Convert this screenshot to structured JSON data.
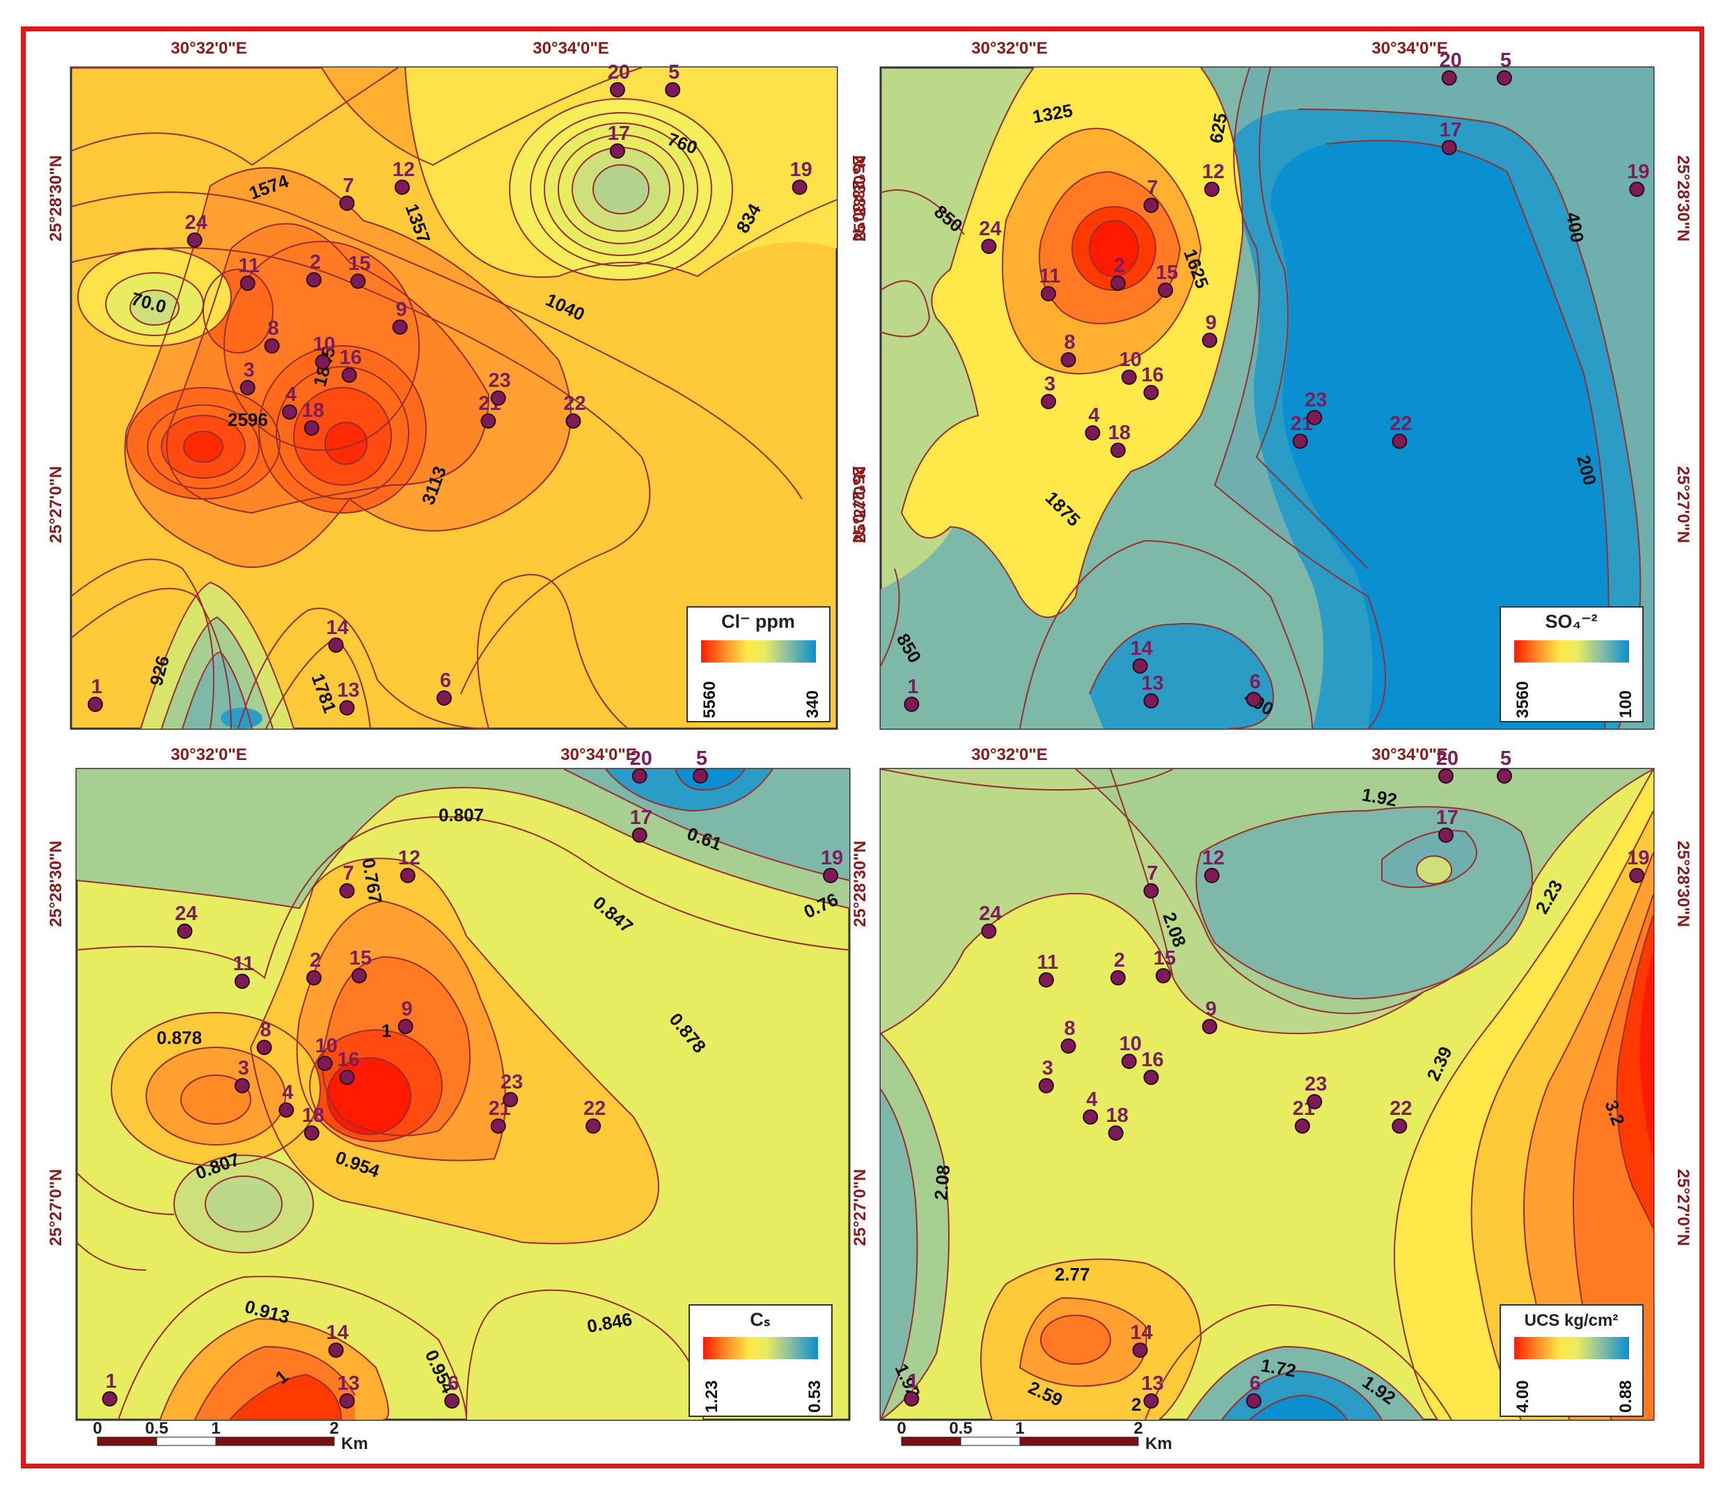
{
  "colors": {
    "frame": "#e01818",
    "contour_line": "#9a2e2e",
    "well_marker": "#7d1b55",
    "well_label": "#7a1f5c",
    "coord_label": "#8b1a1a",
    "ramp": [
      "#ff1a00",
      "#ff6a1a",
      "#ffb030",
      "#ffe84a",
      "#e8ec60",
      "#bcd98a",
      "#7db8a8",
      "#2b9cc6",
      "#0a8fd0"
    ]
  },
  "coordinates": {
    "lon": [
      "30°32'0\"E",
      "30°34'0\"E"
    ],
    "lat": [
      "25°28'30\"N",
      "25°27'0\"N"
    ]
  },
  "scale_bar": {
    "ticks": [
      "0",
      "0.5",
      "1",
      "2"
    ],
    "unit": "Km"
  },
  "panels": [
    {
      "id": "cl",
      "legend": {
        "title": "Cl⁻ ppm",
        "max": "5560",
        "min": "340"
      },
      "contour_labels": [
        "1574",
        "1357",
        "12",
        "760",
        "834",
        "1040",
        "70.0",
        "1845",
        "2596",
        "3113",
        "926",
        "1781"
      ]
    },
    {
      "id": "so4",
      "legend": {
        "title": "SO₄⁻²",
        "max": "3560",
        "min": "100"
      },
      "contour_labels": [
        "1325",
        "625",
        "850",
        "400",
        "1625",
        "200",
        "1875",
        "850",
        "400"
      ]
    },
    {
      "id": "cs",
      "legend": {
        "title": "Cₛ",
        "max": "1.23",
        "min": "0.53"
      },
      "contour_labels": [
        "0.807",
        "0.61",
        "0.767",
        "0.847",
        "0.76",
        "0.878",
        "1",
        "0.878",
        "0.954",
        "0.807",
        "0.913",
        "0.846",
        "0.954",
        "1"
      ]
    },
    {
      "id": "ucs",
      "legend": {
        "title": "UCS kg/cm²",
        "max": "4.00",
        "min": "0.88"
      },
      "contour_labels": [
        "1.92",
        "2.23",
        "2.08",
        "2.39",
        "3.2",
        "2.08",
        "2.77",
        "1.72",
        "1.92",
        "1.92",
        "2.59",
        "2"
      ]
    }
  ],
  "wells": [
    "1",
    "2",
    "3",
    "4",
    "5",
    "6",
    "7",
    "8",
    "9",
    "10",
    "11",
    "12",
    "13",
    "14",
    "15",
    "16",
    "17",
    "18",
    "19",
    "20",
    "21",
    "22",
    "23",
    "24"
  ]
}
